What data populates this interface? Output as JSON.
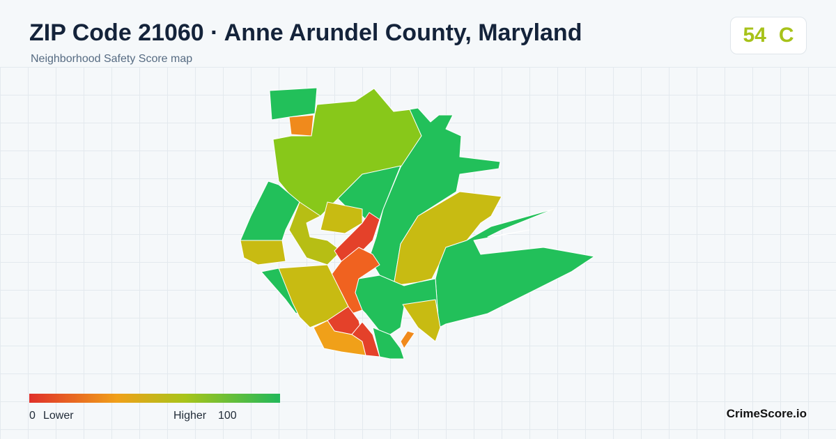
{
  "header": {
    "title": "ZIP Code 21060 · Anne Arundel County, Maryland",
    "subtitle": "Neighborhood Safety Score map",
    "score": 54,
    "grade": "C"
  },
  "legend": {
    "min": 0,
    "min_label": "Lower",
    "max_label": "Higher",
    "max": 100
  },
  "footer": {
    "brand": "CrimeScore.io"
  }
}
